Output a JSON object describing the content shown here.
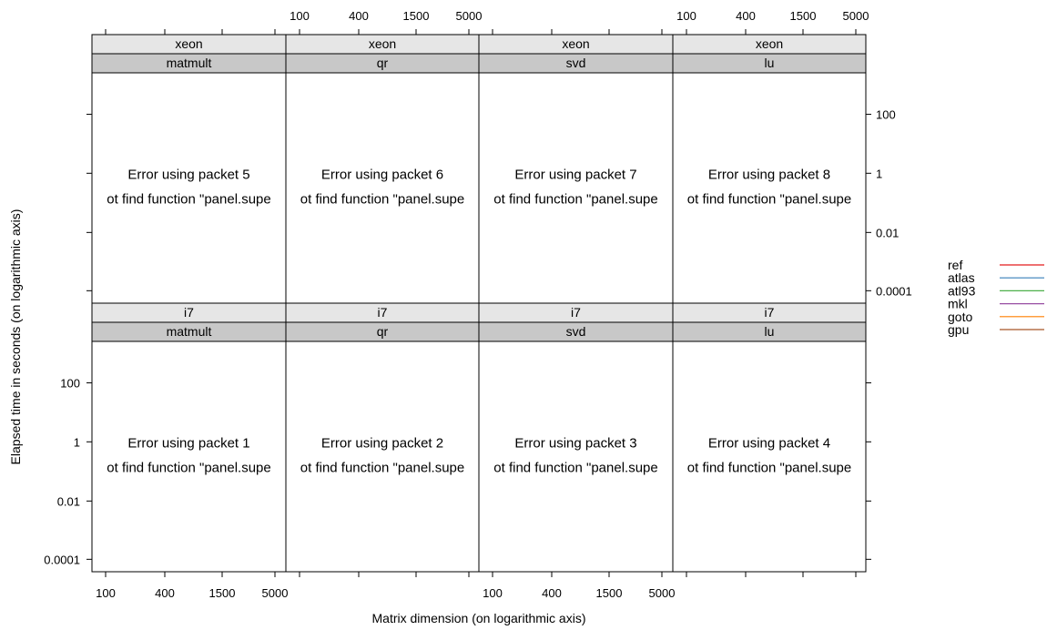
{
  "chart_data": {
    "type": "line",
    "layout": "trellis 4 columns x 2 rows",
    "xlabel": "Matrix dimension (on logarithmic axis)",
    "ylabel": "Elapsed time in seconds (on logarithmic axis)",
    "x_scale": "log",
    "y_scale": "log",
    "x_ticks": [
      "100",
      "400",
      "1500",
      "5000"
    ],
    "y_ticks": [
      "0.0001",
      "0.01",
      "1",
      "100"
    ],
    "legend": {
      "position": "right",
      "entries": [
        {
          "name": "ref",
          "color": "#e41a1c"
        },
        {
          "name": "atlas",
          "color": "#377eb8"
        },
        {
          "name": "atl93",
          "color": "#4daf4a"
        },
        {
          "name": "mkl",
          "color": "#984ea3"
        },
        {
          "name": "goto",
          "color": "#ff7f00"
        },
        {
          "name": "gpu",
          "color": "#a65628"
        }
      ]
    },
    "strip_colors": {
      "outer": "#e6e6e6",
      "inner": "#c8c8c8"
    },
    "error_text": "ot find function \"panel.supe",
    "panels": [
      {
        "machine": "xeon",
        "op": "matmult",
        "message": "Error using packet 5"
      },
      {
        "machine": "xeon",
        "op": "qr",
        "message": "Error using packet 6"
      },
      {
        "machine": "xeon",
        "op": "svd",
        "message": "Error using packet 7"
      },
      {
        "machine": "xeon",
        "op": "lu",
        "message": "Error using packet 8"
      },
      {
        "machine": "i7",
        "op": "matmult",
        "message": "Error using packet 1"
      },
      {
        "machine": "i7",
        "op": "qr",
        "message": "Error using packet 2"
      },
      {
        "machine": "i7",
        "op": "svd",
        "message": "Error using packet 3"
      },
      {
        "machine": "i7",
        "op": "lu",
        "message": "Error using packet 4"
      }
    ],
    "series": []
  }
}
